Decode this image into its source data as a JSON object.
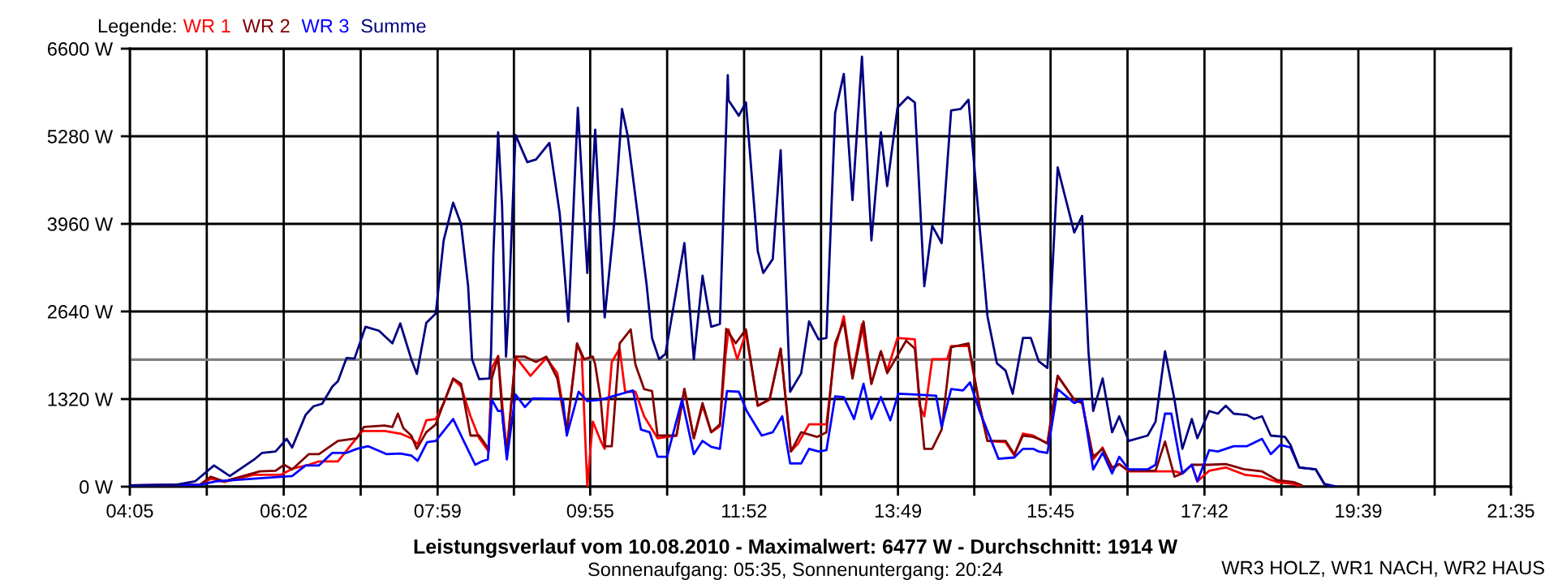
{
  "chart_data": {
    "type": "line",
    "title": "Leistungsverlauf vom 10.08.2010 - Maximalwert: 6477 W - Durchschnitt: 1914 W",
    "subtitle": "Sonnenaufgang: 05:35, Sonnenuntergang: 20:24",
    "legend_title": "Legende:",
    "legend": "top left",
    "grid": true,
    "marker": "none",
    "line_style": "solid",
    "annotations": [
      "WR3 HOLZ, WR1 NACH, WR2 HAUS"
    ],
    "xlim": [
      4.0833,
      21.5833
    ],
    "xticks": [
      {
        "value": 4.0833,
        "label": "04:05"
      },
      {
        "value": 5.0583,
        "label": null
      },
      {
        "value": 6.0333,
        "label": "06:02"
      },
      {
        "value": 7.0083,
        "label": null
      },
      {
        "value": 7.9833,
        "label": "07:59"
      },
      {
        "value": 8.95,
        "label": null
      },
      {
        "value": 9.9167,
        "label": "09:55"
      },
      {
        "value": 10.8917,
        "label": null
      },
      {
        "value": 11.8667,
        "label": "11:52"
      },
      {
        "value": 12.8417,
        "label": null
      },
      {
        "value": 13.8167,
        "label": "13:49"
      },
      {
        "value": 14.7833,
        "label": null
      },
      {
        "value": 15.75,
        "label": "15:45"
      },
      {
        "value": 16.725,
        "label": null
      },
      {
        "value": 17.7,
        "label": "17:42"
      },
      {
        "value": 18.675,
        "label": null
      },
      {
        "value": 19.65,
        "label": "19:39"
      },
      {
        "value": 20.6167,
        "label": null
      },
      {
        "value": 21.5833,
        "label": "21:35"
      }
    ],
    "ylim": [
      0,
      6600
    ],
    "yticks": [
      {
        "value": 0,
        "label": "0 W"
      },
      {
        "value": 1320,
        "label": "1320 W"
      },
      {
        "value": 2640,
        "label": "2640 W"
      },
      {
        "value": 3960,
        "label": "3960 W"
      },
      {
        "value": 5280,
        "label": "5280 W"
      },
      {
        "value": 6600,
        "label": "6600 W"
      }
    ],
    "ref_lines": [
      {
        "axis": "y",
        "value": 1914,
        "color": "#808080"
      }
    ],
    "series": [
      {
        "name": "WR 1",
        "color": "#ff0000",
        "x": [
          4.09,
          4.97,
          5.11,
          5.28,
          5.45,
          5.66,
          6.0,
          6.14,
          6.35,
          6.48,
          6.72,
          6.9,
          7.03,
          7.31,
          7.51,
          7.65,
          7.73,
          7.84,
          7.96,
          8.06,
          8.18,
          8.28,
          8.4,
          8.51,
          8.63,
          8.67,
          8.75,
          8.81,
          8.86,
          8.97,
          9.16,
          9.36,
          9.5,
          9.62,
          9.75,
          9.81,
          9.88,
          9.95,
          10.05,
          10.1,
          10.19,
          10.29,
          10.36,
          10.49,
          10.6,
          10.77,
          11.01,
          11.11,
          11.23,
          11.34,
          11.45,
          11.56,
          11.63,
          11.67,
          11.78,
          11.89,
          12.04,
          12.19,
          12.33,
          12.46,
          12.55,
          12.69,
          12.91,
          13.02,
          13.13,
          13.24,
          13.36,
          13.48,
          13.6,
          13.68,
          13.81,
          14.03,
          14.09,
          14.15,
          14.25,
          14.44,
          14.49,
          14.71,
          14.85,
          14.95,
          15.18,
          15.29,
          15.4,
          15.53,
          15.6,
          15.71,
          15.84,
          16.05,
          16.15,
          16.29,
          16.41,
          16.53,
          16.62,
          16.74,
          17.32,
          17.42,
          17.54,
          17.61,
          17.76,
          17.97,
          18.21,
          18.43,
          18.62,
          18.83,
          18.93
        ],
        "values": [
          20,
          30,
          120,
          70,
          120,
          180,
          180,
          270,
          330,
          380,
          380,
          650,
          840,
          840,
          800,
          730,
          640,
          1000,
          1020,
          1260,
          1620,
          1510,
          1060,
          730,
          530,
          1790,
          1970,
          1140,
          530,
          1960,
          1670,
          1940,
          1710,
          860,
          2140,
          1970,
          0,
          980,
          690,
          570,
          1880,
          2080,
          1430,
          1430,
          1060,
          730,
          770,
          1470,
          730,
          1220,
          820,
          910,
          1960,
          2370,
          1920,
          2320,
          1220,
          1310,
          2080,
          530,
          650,
          940,
          940,
          2080,
          2570,
          1670,
          2450,
          1550,
          2040,
          1750,
          2240,
          2220,
          1220,
          1060,
          1920,
          1920,
          2120,
          2120,
          1220,
          690,
          670,
          470,
          800,
          770,
          720,
          650,
          1670,
          1310,
          1260,
          410,
          590,
          260,
          340,
          230,
          230,
          200,
          330,
          80,
          240,
          290,
          180,
          150,
          70,
          40,
          0
        ]
      },
      {
        "name": "WR 2",
        "color": "#800000",
        "x": [
          4.09,
          4.97,
          5.11,
          5.28,
          5.52,
          5.73,
          5.93,
          6.04,
          6.14,
          6.35,
          6.48,
          6.72,
          6.96,
          7.05,
          7.31,
          7.41,
          7.48,
          7.55,
          7.65,
          7.72,
          7.84,
          7.96,
          8.06,
          8.18,
          8.28,
          8.4,
          8.51,
          8.63,
          8.67,
          8.75,
          8.81,
          8.86,
          8.97,
          9.09,
          9.23,
          9.36,
          9.5,
          9.62,
          9.75,
          9.84,
          9.95,
          9.98,
          10.05,
          10.1,
          10.19,
          10.29,
          10.43,
          10.49,
          10.6,
          10.7,
          10.77,
          11.01,
          11.11,
          11.23,
          11.34,
          11.45,
          11.56,
          11.64,
          11.76,
          11.89,
          12.04,
          12.19,
          12.33,
          12.46,
          12.59,
          12.79,
          12.91,
          13.02,
          13.13,
          13.24,
          13.38,
          13.48,
          13.6,
          13.68,
          13.92,
          14.03,
          14.15,
          14.25,
          14.37,
          14.49,
          14.71,
          14.85,
          14.95,
          15.18,
          15.29,
          15.4,
          15.53,
          15.6,
          15.71,
          15.84,
          16.05,
          16.15,
          16.29,
          16.41,
          16.53,
          16.62,
          16.74,
          17.08,
          17.2,
          17.32,
          17.42,
          17.54,
          17.76,
          17.97,
          18.21,
          18.43,
          18.62,
          18.83,
          18.93
        ],
        "values": [
          20,
          30,
          150,
          80,
          160,
          230,
          240,
          330,
          260,
          490,
          490,
          690,
          730,
          900,
          920,
          900,
          1100,
          880,
          770,
          570,
          820,
          940,
          1260,
          1630,
          1550,
          770,
          770,
          570,
          1630,
          1960,
          980,
          490,
          1960,
          1960,
          1880,
          1960,
          1630,
          820,
          2160,
          1920,
          1960,
          1840,
          1310,
          610,
          610,
          2160,
          2370,
          1840,
          1470,
          1440,
          770,
          770,
          1470,
          730,
          1260,
          820,
          940,
          2380,
          2160,
          2370,
          1220,
          1320,
          2080,
          530,
          820,
          750,
          820,
          2160,
          2490,
          1630,
          2490,
          1550,
          2040,
          1710,
          2200,
          2080,
          570,
          570,
          860,
          2100,
          2160,
          1220,
          690,
          690,
          490,
          770,
          750,
          720,
          650,
          1670,
          1310,
          1260,
          450,
          570,
          290,
          340,
          240,
          240,
          680,
          150,
          200,
          330,
          330,
          340,
          260,
          230,
          100,
          70,
          20
        ]
      },
      {
        "name": "WR 3",
        "color": "#0000ff",
        "x": [
          4.09,
          4.97,
          5.18,
          6.14,
          6.31,
          6.48,
          6.65,
          6.83,
          6.96,
          7.1,
          7.34,
          7.51,
          7.65,
          7.73,
          7.85,
          7.96,
          8.18,
          8.33,
          8.46,
          8.54,
          8.62,
          8.67,
          8.75,
          8.8,
          8.86,
          8.97,
          9.09,
          9.19,
          9.57,
          9.62,
          9.77,
          9.88,
          10.05,
          10.46,
          10.56,
          10.67,
          10.77,
          10.89,
          11.08,
          11.23,
          11.34,
          11.45,
          11.56,
          11.65,
          11.8,
          11.9,
          12.09,
          12.23,
          12.35,
          12.45,
          12.59,
          12.69,
          12.81,
          12.91,
          13.02,
          13.13,
          13.26,
          13.38,
          13.48,
          13.6,
          13.72,
          13.82,
          14.03,
          14.3,
          14.37,
          14.49,
          14.64,
          14.73,
          14.85,
          15.09,
          15.29,
          15.4,
          15.53,
          15.6,
          15.71,
          15.84,
          16.05,
          16.15,
          16.29,
          16.41,
          16.53,
          16.62,
          16.74,
          16.98,
          17.08,
          17.2,
          17.28,
          17.42,
          17.54,
          17.61,
          17.76,
          17.87,
          18.07,
          18.24,
          18.43,
          18.54,
          18.66,
          18.79,
          18.9,
          19.11,
          19.22,
          19.31
        ],
        "values": [
          20,
          30,
          80,
          160,
          320,
          320,
          510,
          510,
          570,
          610,
          490,
          500,
          470,
          390,
          670,
          690,
          1020,
          650,
          330,
          380,
          410,
          1310,
          1140,
          1140,
          410,
          1390,
          1200,
          1330,
          1320,
          770,
          1430,
          1290,
          1310,
          1450,
          860,
          820,
          450,
          450,
          1310,
          490,
          690,
          600,
          570,
          1440,
          1430,
          1140,
          770,
          820,
          1060,
          350,
          350,
          570,
          530,
          550,
          1360,
          1350,
          1020,
          1550,
          1020,
          1350,
          1000,
          1400,
          1390,
          1370,
          900,
          1470,
          1450,
          1570,
          1140,
          420,
          440,
          570,
          570,
          530,
          510,
          1470,
          1260,
          1310,
          260,
          510,
          200,
          450,
          260,
          260,
          330,
          1100,
          1100,
          200,
          330,
          80,
          550,
          530,
          610,
          610,
          720,
          490,
          630,
          590,
          290,
          260,
          40,
          0
        ]
      },
      {
        "name": "Summe",
        "color": "#000080",
        "x": [
          4.09,
          4.67,
          4.91,
          5.15,
          5.35,
          5.66,
          5.76,
          5.93,
          6.07,
          6.14,
          6.31,
          6.41,
          6.52,
          6.65,
          6.72,
          6.83,
          6.93,
          7.07,
          7.24,
          7.41,
          7.51,
          7.65,
          7.72,
          7.84,
          7.96,
          8.06,
          8.18,
          8.28,
          8.37,
          8.42,
          8.51,
          8.64,
          8.66,
          8.69,
          8.75,
          8.8,
          8.85,
          8.88,
          8.97,
          9.12,
          9.23,
          9.4,
          9.53,
          9.6,
          9.64,
          9.67,
          9.76,
          9.88,
          9.98,
          10.05,
          10.1,
          10.22,
          10.32,
          10.39,
          10.63,
          10.7,
          10.79,
          10.87,
          11.11,
          11.23,
          11.34,
          11.45,
          11.56,
          11.63,
          11.66,
          11.67,
          11.8,
          11.89,
          12.04,
          12.11,
          12.23,
          12.33,
          12.45,
          12.59,
          12.69,
          12.81,
          12.91,
          13.02,
          13.13,
          13.24,
          13.36,
          13.48,
          13.6,
          13.68,
          13.81,
          13.94,
          14.03,
          14.15,
          14.25,
          14.37,
          14.49,
          14.61,
          14.71,
          14.95,
          15.07,
          15.18,
          15.27,
          15.4,
          15.5,
          15.6,
          15.71,
          15.84,
          16.05,
          16.15,
          16.23,
          16.29,
          16.41,
          16.53,
          16.62,
          16.74,
          16.98,
          17.08,
          17.2,
          17.32,
          17.42,
          17.54,
          17.61,
          17.76,
          17.87,
          17.97,
          18.07,
          18.24,
          18.33,
          18.43,
          18.54,
          18.72,
          18.79,
          18.9,
          19.11,
          19.22,
          19.38
        ],
        "values": [
          20,
          30,
          80,
          320,
          160,
          410,
          510,
          530,
          720,
          590,
          1080,
          1210,
          1250,
          1510,
          1590,
          1940,
          1930,
          2410,
          2350,
          2160,
          2460,
          1920,
          1700,
          2470,
          2610,
          3710,
          4280,
          3960,
          3020,
          1920,
          1620,
          1630,
          2000,
          3510,
          5340,
          4240,
          1960,
          2610,
          5300,
          4890,
          4930,
          5180,
          4120,
          3100,
          2490,
          3260,
          5710,
          3220,
          5380,
          3710,
          2550,
          3960,
          5690,
          5300,
          3060,
          2240,
          1920,
          2000,
          3670,
          1920,
          3180,
          2410,
          2450,
          5060,
          6200,
          5820,
          5590,
          5790,
          3550,
          3220,
          3430,
          5070,
          1430,
          1710,
          2490,
          2220,
          2240,
          5630,
          6220,
          4320,
          6480,
          3710,
          5340,
          4530,
          5710,
          5870,
          5790,
          3020,
          3930,
          3670,
          5670,
          5690,
          5830,
          2570,
          1860,
          1750,
          1400,
          2240,
          2240,
          1890,
          1790,
          4810,
          3830,
          4080,
          2040,
          1140,
          1630,
          820,
          1060,
          690,
          770,
          980,
          2040,
          1310,
          570,
          1020,
          730,
          1140,
          1100,
          1220,
          1100,
          1080,
          1020,
          1060,
          770,
          750,
          630,
          290,
          260,
          40,
          0
        ]
      }
    ]
  }
}
